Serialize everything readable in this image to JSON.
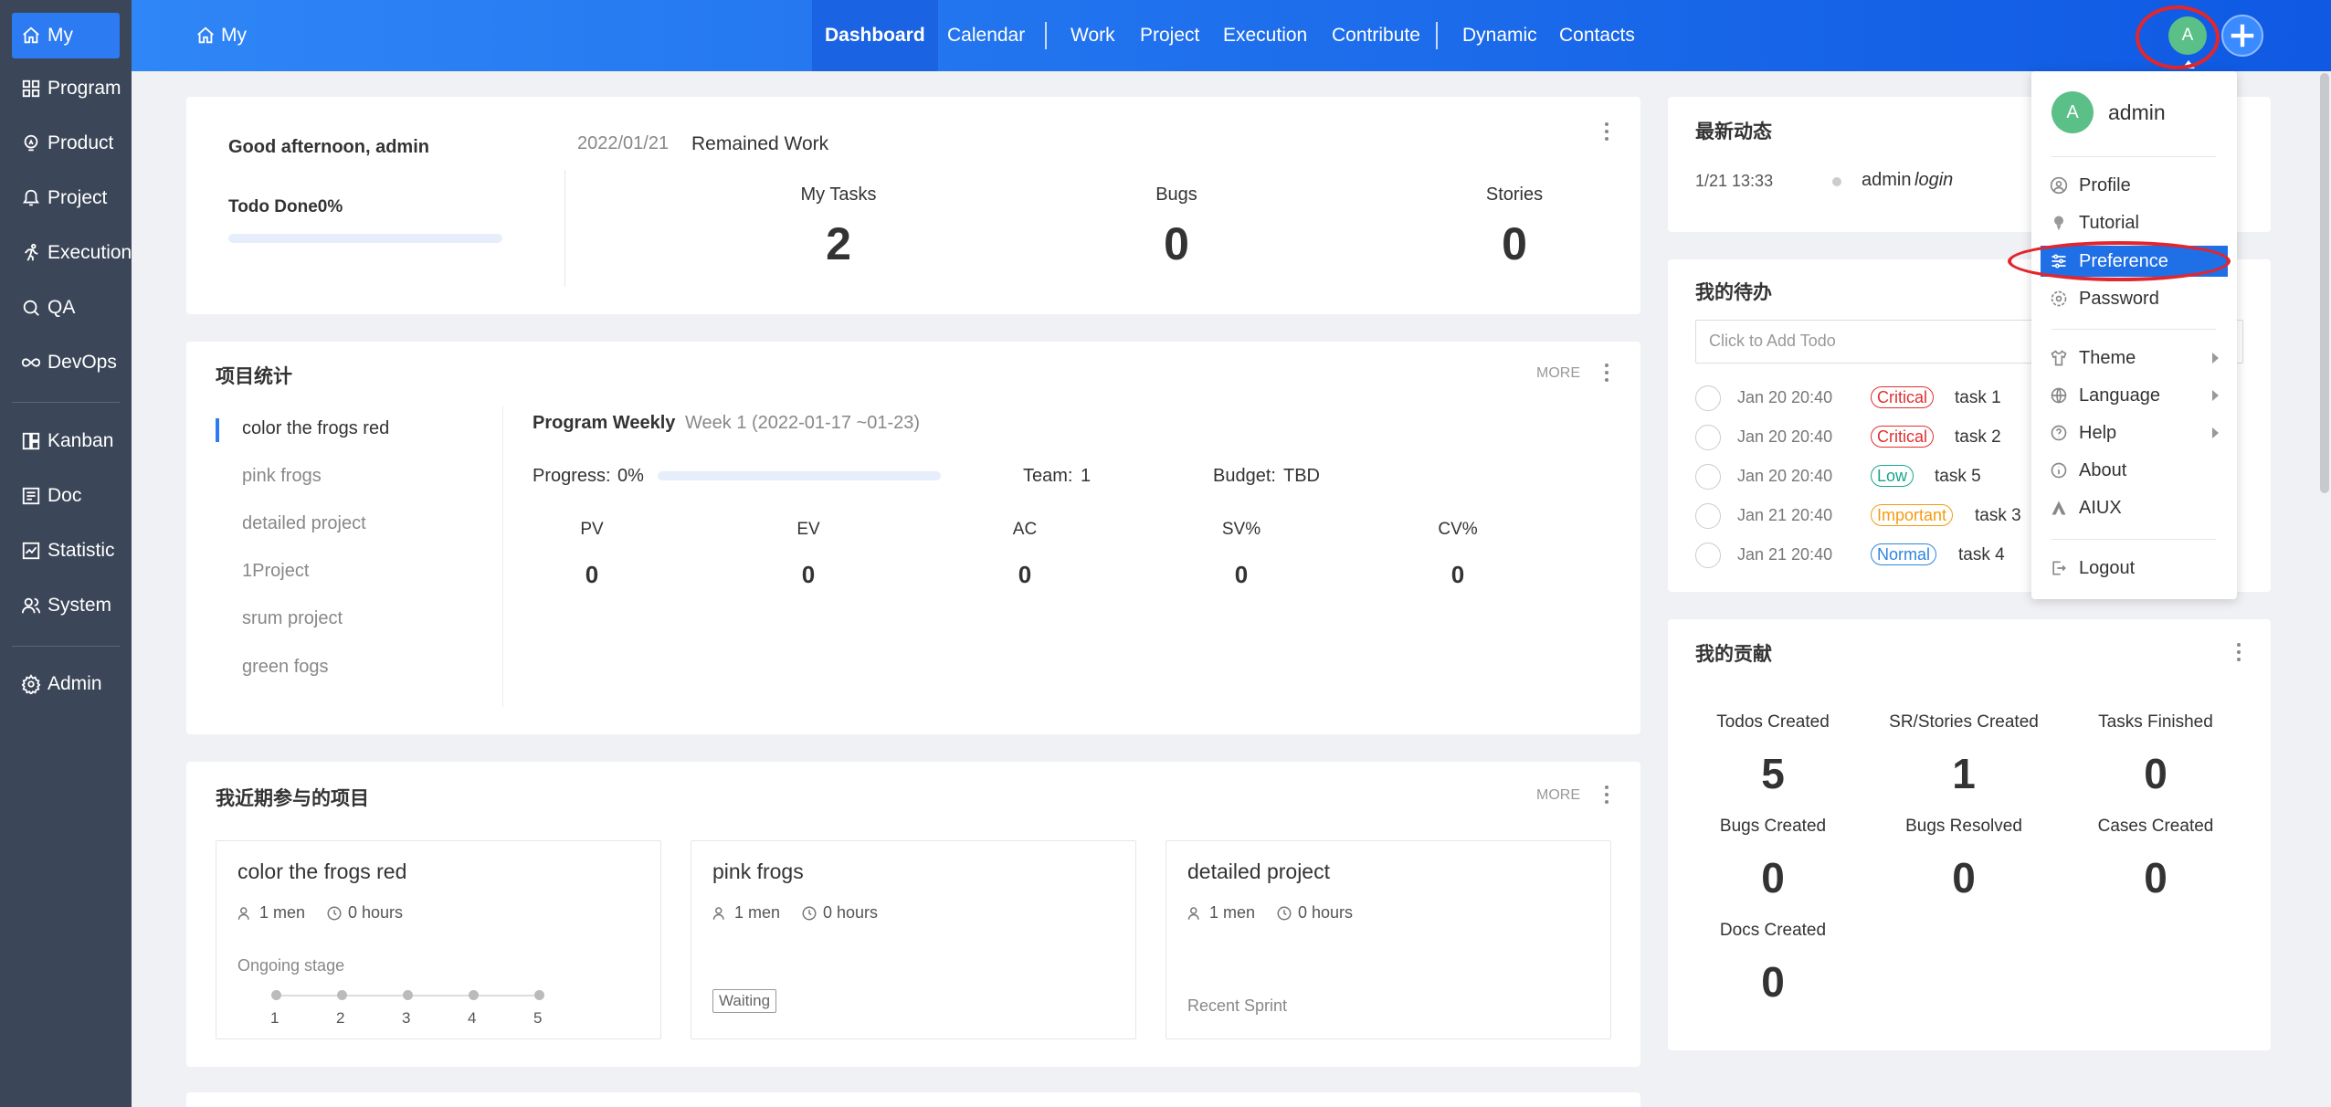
{
  "sidebar": {
    "items": [
      {
        "label": "My",
        "icon": "home-icon"
      },
      {
        "label": "Program",
        "icon": "grid-icon"
      },
      {
        "label": "Product",
        "icon": "lightbulb-icon"
      },
      {
        "label": "Project",
        "icon": "project-icon"
      },
      {
        "label": "Execution",
        "icon": "run-icon"
      },
      {
        "label": "QA",
        "icon": "search-icon"
      },
      {
        "label": "DevOps",
        "icon": "infinity-icon"
      },
      {
        "label": "Kanban",
        "icon": "kanban-icon"
      },
      {
        "label": "Doc",
        "icon": "doc-icon"
      },
      {
        "label": "Statistic",
        "icon": "chart-icon"
      },
      {
        "label": "System",
        "icon": "users-icon"
      },
      {
        "label": "Admin",
        "icon": "gear-icon"
      }
    ]
  },
  "header": {
    "crumb": "My",
    "nav": [
      "Dashboard",
      "Calendar",
      "Work",
      "Project",
      "Execution",
      "Contribute",
      "Dynamic",
      "Contacts"
    ],
    "avatar_letter": "A"
  },
  "welcome": {
    "greeting": "Good afternoon, admin",
    "todo_done": "Todo Done0%",
    "todo_progress_fraction": 0,
    "date": "2022/01/21",
    "remained": "Remained Work",
    "stats": [
      {
        "label": "My Tasks",
        "value": "2"
      },
      {
        "label": "Bugs",
        "value": "0"
      },
      {
        "label": "Stories",
        "value": "0"
      }
    ]
  },
  "project_stats": {
    "title": "项目统计",
    "more": "MORE",
    "list": [
      "color the frogs red",
      "pink frogs",
      "detailed project",
      "1Project",
      "srum project",
      "green fogs"
    ],
    "program_weekly": "Program Weekly",
    "week": "Week 1 (2022-01-17 ~01-23)",
    "progress_label": "Progress:",
    "progress_value": "0%",
    "progress_fraction": 0,
    "team_label": "Team:",
    "team_value": "1",
    "budget_label": "Budget:",
    "budget_value": "TBD",
    "metrics": [
      {
        "label": "PV",
        "value": "0"
      },
      {
        "label": "EV",
        "value": "0"
      },
      {
        "label": "AC",
        "value": "0"
      },
      {
        "label": "SV%",
        "value": "0"
      },
      {
        "label": "CV%",
        "value": "0"
      }
    ]
  },
  "recent_projects": {
    "title": "我近期参与的项目",
    "more": "MORE",
    "cards": [
      {
        "name": "color the frogs red",
        "men": "1 men",
        "hours": "0 hours",
        "status": "Ongoing stage",
        "steps": [
          "1",
          "2",
          "3",
          "4",
          "5"
        ]
      },
      {
        "name": "pink frogs",
        "men": "1 men",
        "hours": "0 hours",
        "status": "Waiting"
      },
      {
        "name": "detailed project",
        "men": "1 men",
        "hours": "0 hours",
        "status": "Recent Sprint"
      }
    ]
  },
  "dynamic": {
    "title": "最新动态",
    "items": [
      {
        "time": "1/21 13:33",
        "user": "admin",
        "action": "login"
      }
    ]
  },
  "todos": {
    "title": "我的待办",
    "placeholder": "Click to Add Todo",
    "items": [
      {
        "date": "Jan 20 20:40",
        "priority": "Critical",
        "color": "#e0302f",
        "name": "task 1"
      },
      {
        "date": "Jan 20 20:40",
        "priority": "Critical",
        "color": "#e0302f",
        "name": "task 2"
      },
      {
        "date": "Jan 20 20:40",
        "priority": "Low",
        "color": "#17a589",
        "name": "task 5"
      },
      {
        "date": "Jan 21 20:40",
        "priority": "Important",
        "color": "#f39c12",
        "name": "task 3"
      },
      {
        "date": "Jan 21 20:40",
        "priority": "Normal",
        "color": "#2e86de",
        "name": "task 4"
      }
    ]
  },
  "contribution": {
    "title": "我的贡献",
    "items": [
      {
        "label": "Todos Created",
        "value": "5"
      },
      {
        "label": "SR/Stories Created",
        "value": "1"
      },
      {
        "label": "Tasks Finished",
        "value": "0"
      },
      {
        "label": "Bugs Created",
        "value": "0"
      },
      {
        "label": "Bugs Resolved",
        "value": "0"
      },
      {
        "label": "Cases Created",
        "value": "0"
      },
      {
        "label": "Docs Created",
        "value": "0"
      }
    ]
  },
  "user_menu": {
    "name": "admin",
    "avatar_letter": "A",
    "items": [
      {
        "label": "Profile",
        "icon": "user-circle-icon"
      },
      {
        "label": "Tutorial",
        "icon": "pin-icon"
      },
      {
        "label": "Preference",
        "icon": "sliders-icon"
      },
      {
        "label": "Password",
        "icon": "gear-icon"
      },
      {
        "label": "Theme",
        "icon": "shirt-icon"
      },
      {
        "label": "Language",
        "icon": "globe-icon"
      },
      {
        "label": "Help",
        "icon": "help-icon"
      },
      {
        "label": "About",
        "icon": "info-icon"
      },
      {
        "label": "AIUX",
        "icon": "aiux-icon"
      },
      {
        "label": "Logout",
        "icon": "logout-icon"
      }
    ]
  },
  "colors": {
    "accent": "#2d7bf2",
    "sidebar": "#3b4658",
    "avatar": "#5bbf88",
    "highlight": "#e3262d"
  }
}
